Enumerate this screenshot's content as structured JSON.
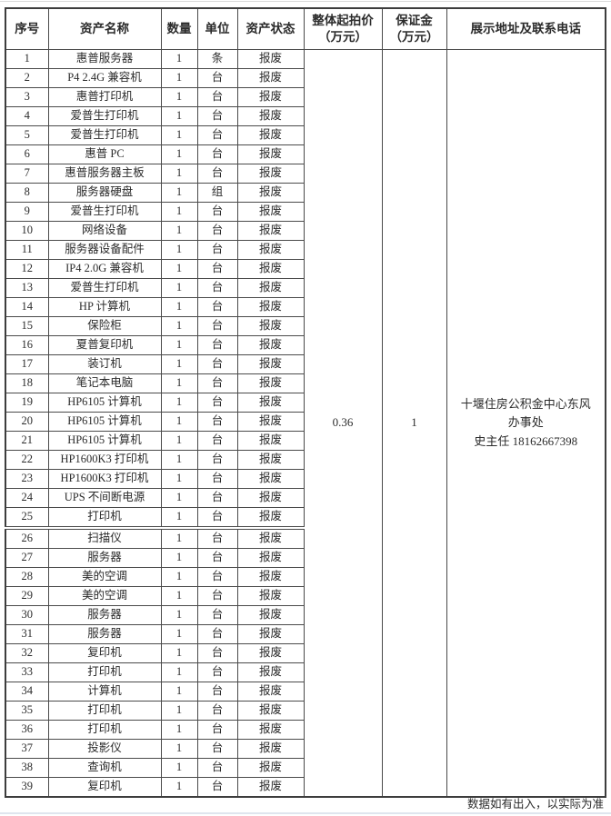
{
  "table": {
    "headers": [
      {
        "label": "序号"
      },
      {
        "label": "资产名称"
      },
      {
        "label": "数量"
      },
      {
        "label": "单位"
      },
      {
        "label": "资产状态"
      },
      {
        "label": "整体起拍价",
        "sub": "（万元）"
      },
      {
        "label": "保证金",
        "sub": "（万元）"
      },
      {
        "label": "展示地址及联系电话"
      }
    ],
    "rows": [
      [
        1,
        "惠普服务器",
        1,
        "条",
        "报废"
      ],
      [
        2,
        "P4 2.4G 兼容机",
        1,
        "台",
        "报废"
      ],
      [
        3,
        "惠普打印机",
        1,
        "台",
        "报废"
      ],
      [
        4,
        "爱普生打印机",
        1,
        "台",
        "报废"
      ],
      [
        5,
        "爱普生打印机",
        1,
        "台",
        "报废"
      ],
      [
        6,
        "惠普 PC",
        1,
        "台",
        "报废"
      ],
      [
        7,
        "惠普服务器主板",
        1,
        "台",
        "报废"
      ],
      [
        8,
        "服务器硬盘",
        1,
        "组",
        "报废"
      ],
      [
        9,
        "爱普生打印机",
        1,
        "台",
        "报废"
      ],
      [
        10,
        "网络设备",
        1,
        "台",
        "报废"
      ],
      [
        11,
        "服务器设备配件",
        1,
        "台",
        "报废"
      ],
      [
        12,
        "IP4 2.0G 兼容机",
        1,
        "台",
        "报废"
      ],
      [
        13,
        "爱普生打印机",
        1,
        "台",
        "报废"
      ],
      [
        14,
        "HP 计算机",
        1,
        "台",
        "报废"
      ],
      [
        15,
        "保险柜",
        1,
        "台",
        "报废"
      ],
      [
        16,
        "夏普复印机",
        1,
        "台",
        "报废"
      ],
      [
        17,
        "装订机",
        1,
        "台",
        "报废"
      ],
      [
        18,
        "笔记本电脑",
        1,
        "台",
        "报废"
      ],
      [
        19,
        "HP6105 计算机",
        1,
        "台",
        "报废"
      ],
      [
        20,
        "HP6105 计算机",
        1,
        "台",
        "报废"
      ],
      [
        21,
        "HP6105 计算机",
        1,
        "台",
        "报废"
      ],
      [
        22,
        "HP1600K3 打印机",
        1,
        "台",
        "报废"
      ],
      [
        23,
        "HP1600K3 打印机",
        1,
        "台",
        "报废"
      ],
      [
        24,
        "UPS 不间断电源",
        1,
        "台",
        "报废"
      ],
      [
        25,
        "打印机",
        1,
        "台",
        "报废"
      ],
      [
        26,
        "扫描仪",
        1,
        "台",
        "报废"
      ],
      [
        27,
        "服务器",
        1,
        "台",
        "报废"
      ],
      [
        28,
        "美的空调",
        1,
        "台",
        "报废"
      ],
      [
        29,
        "美的空调",
        1,
        "台",
        "报废"
      ],
      [
        30,
        "服务器",
        1,
        "台",
        "报废"
      ],
      [
        31,
        "服务器",
        1,
        "台",
        "报废"
      ],
      [
        32,
        "复印机",
        1,
        "台",
        "报废"
      ],
      [
        33,
        "打印机",
        1,
        "台",
        "报废"
      ],
      [
        34,
        "计算机",
        1,
        "台",
        "报废"
      ],
      [
        35,
        "打印机",
        1,
        "台",
        "报废"
      ],
      [
        36,
        "打印机",
        1,
        "台",
        "报废"
      ],
      [
        37,
        "投影仪",
        1,
        "台",
        "报废"
      ],
      [
        38,
        "查询机",
        1,
        "台",
        "报废"
      ],
      [
        39,
        "复印机",
        1,
        "台",
        "报废"
      ]
    ],
    "section_break_after_row": 25,
    "merged": {
      "starting_price": "0.36",
      "deposit": "1",
      "address": "十堰住房公积金中心东风办事处",
      "contact": "史主任 18162667398"
    }
  },
  "footer": {
    "note": "数据如有出入，以实际为准"
  }
}
